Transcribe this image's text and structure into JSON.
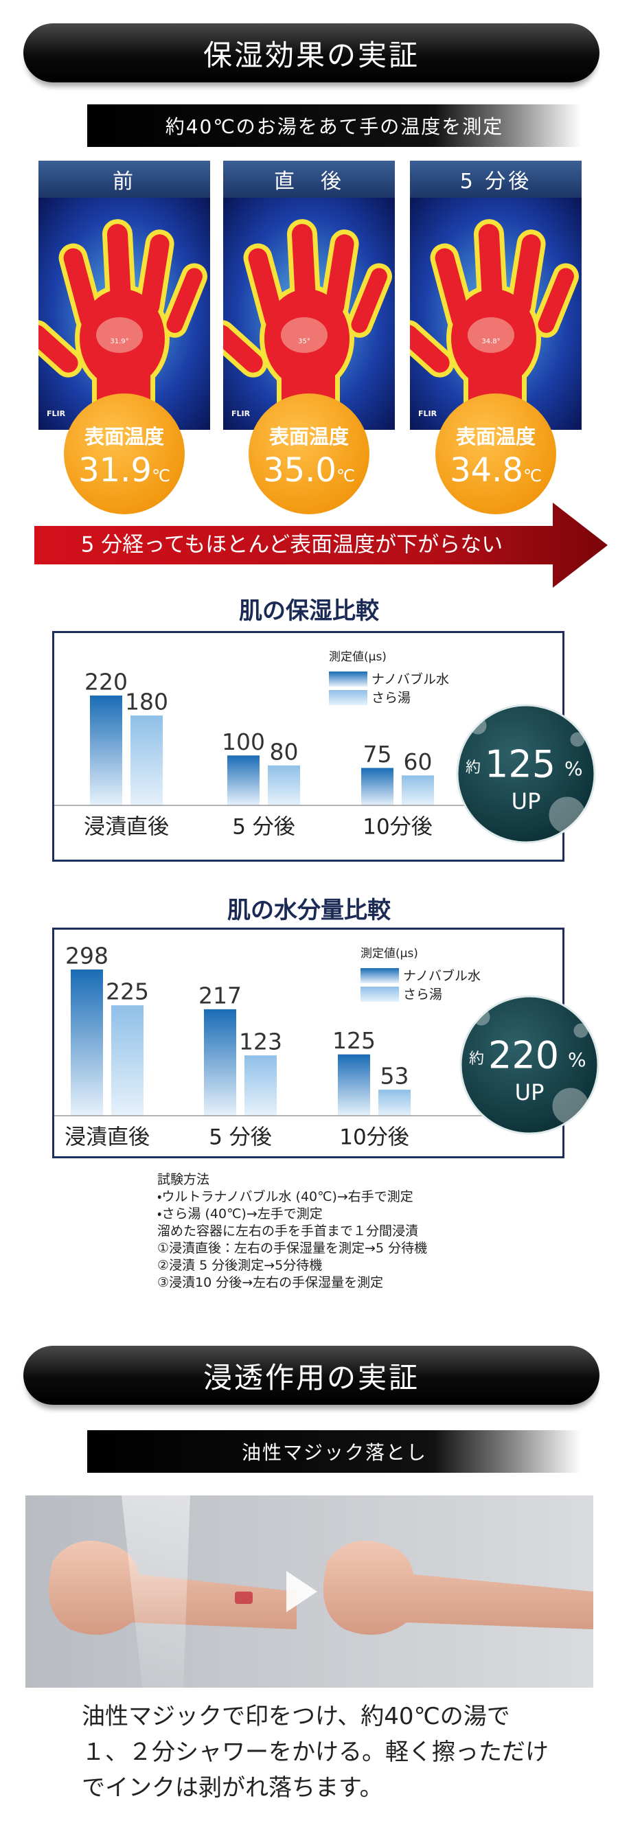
{
  "section1": {
    "title": "保湿効果の実証",
    "subtitle": "約40℃のお湯をあて手の温度を測定",
    "flir": "FLIR",
    "thermal": [
      {
        "label": "前",
        "spot": "31.9°",
        "surface_label": "表面温度",
        "temperature": 31.9,
        "unit": "℃"
      },
      {
        "label": "直　後",
        "spot": "35°",
        "surface_label": "表面温度",
        "temperature": 35.0,
        "unit": "℃"
      },
      {
        "label": "5 分後",
        "spot": "34.8°",
        "surface_label": "表面温度",
        "temperature": 34.8,
        "unit": "℃"
      }
    ],
    "arrow_text": "5 分経ってもほとんど表面温度が下がらない"
  },
  "chart_data": [
    {
      "type": "bar",
      "title": "肌の保湿比較",
      "unit_label": "測定値(μs)",
      "categories": [
        "浸漬直後",
        "5 分後",
        "10分後"
      ],
      "series": [
        {
          "name": "ナノバブル水",
          "color": "#1a6cb6",
          "values": [
            220,
            100,
            75
          ]
        },
        {
          "name": "さら湯",
          "color": "#8fc0e8",
          "values": [
            180,
            80,
            60
          ]
        }
      ],
      "badge": {
        "prefix": "約",
        "value": 125,
        "unit": "%",
        "suffix": "UP"
      }
    },
    {
      "type": "bar",
      "title": "肌の水分量比較",
      "unit_label": "測定値(μs)",
      "categories": [
        "浸漬直後",
        "5 分後",
        "10分後"
      ],
      "series": [
        {
          "name": "ナノバブル水",
          "color": "#1a6cb6",
          "values": [
            298,
            217,
            125
          ]
        },
        {
          "name": "さら湯",
          "color": "#8fc0e8",
          "values": [
            225,
            123,
            53
          ]
        }
      ],
      "badge": {
        "prefix": "約",
        "value": 220,
        "unit": "%",
        "suffix": "UP"
      }
    }
  ],
  "method": {
    "title": "試験方法",
    "lines": [
      "・ウルトラナノバブル水 (40℃)→右手で測定",
      "・さら湯 (40℃)→左手で測定",
      "溜めた容器に左右の手を手首まで１分間浸漬",
      "①浸漬直後：左右の手保湿量を測定→5 分待機",
      "②浸漬 5 分後測定→5分待機",
      "③浸漬10 分後→左右の手保湿量を測定"
    ]
  },
  "section2": {
    "title": "浸透作用の実証",
    "subtitle": "油性マジック落とし",
    "caption": [
      "油性マジックで印をつけ、約40℃の湯で",
      "１、２分シャワーをかける。軽く擦っただけ",
      "でインクは剥がれ落ちます。"
    ]
  }
}
